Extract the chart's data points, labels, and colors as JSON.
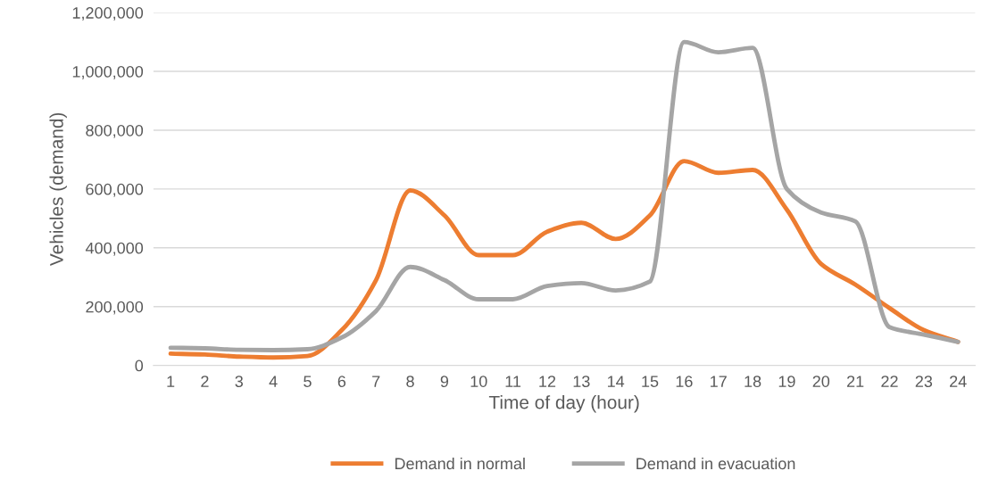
{
  "chart_data": {
    "type": "line",
    "xlabel": "Time of day (hour)",
    "ylabel": "Vehicles (demand)",
    "categories": [
      "1",
      "2",
      "3",
      "4",
      "5",
      "6",
      "7",
      "8",
      "9",
      "10",
      "11",
      "12",
      "13",
      "14",
      "15",
      "16",
      "17",
      "18",
      "19",
      "20",
      "21",
      "22",
      "23",
      "24"
    ],
    "series": [
      {
        "name": "Demand in normal",
        "color": "#ed7d31",
        "values": [
          40000,
          37000,
          30000,
          27000,
          32000,
          120000,
          290000,
          595000,
          510000,
          375000,
          375000,
          455000,
          485000,
          430000,
          510000,
          695000,
          655000,
          665000,
          530000,
          345000,
          275000,
          195000,
          120000,
          80000
        ]
      },
      {
        "name": "Demand in evacuation",
        "color": "#a5a5a5",
        "values": [
          60000,
          58000,
          53000,
          52000,
          55000,
          95000,
          185000,
          335000,
          290000,
          225000,
          225000,
          270000,
          280000,
          255000,
          285000,
          1100000,
          1065000,
          1080000,
          600000,
          520000,
          490000,
          130000,
          105000,
          80000
        ]
      }
    ],
    "ylim": [
      0,
      1200000
    ],
    "yticks": [
      {
        "value": 0,
        "label": "0"
      },
      {
        "value": 200000,
        "label": "200,000"
      },
      {
        "value": 400000,
        "label": "400,000"
      },
      {
        "value": 600000,
        "label": "600,000"
      },
      {
        "value": 800000,
        "label": "800,000"
      },
      {
        "value": 1000000,
        "label": "1,000,000"
      },
      {
        "value": 1200000,
        "label": "1,200,000"
      }
    ],
    "grid": "y",
    "legend": "bottom",
    "marker": "none",
    "line_style": "solid"
  }
}
